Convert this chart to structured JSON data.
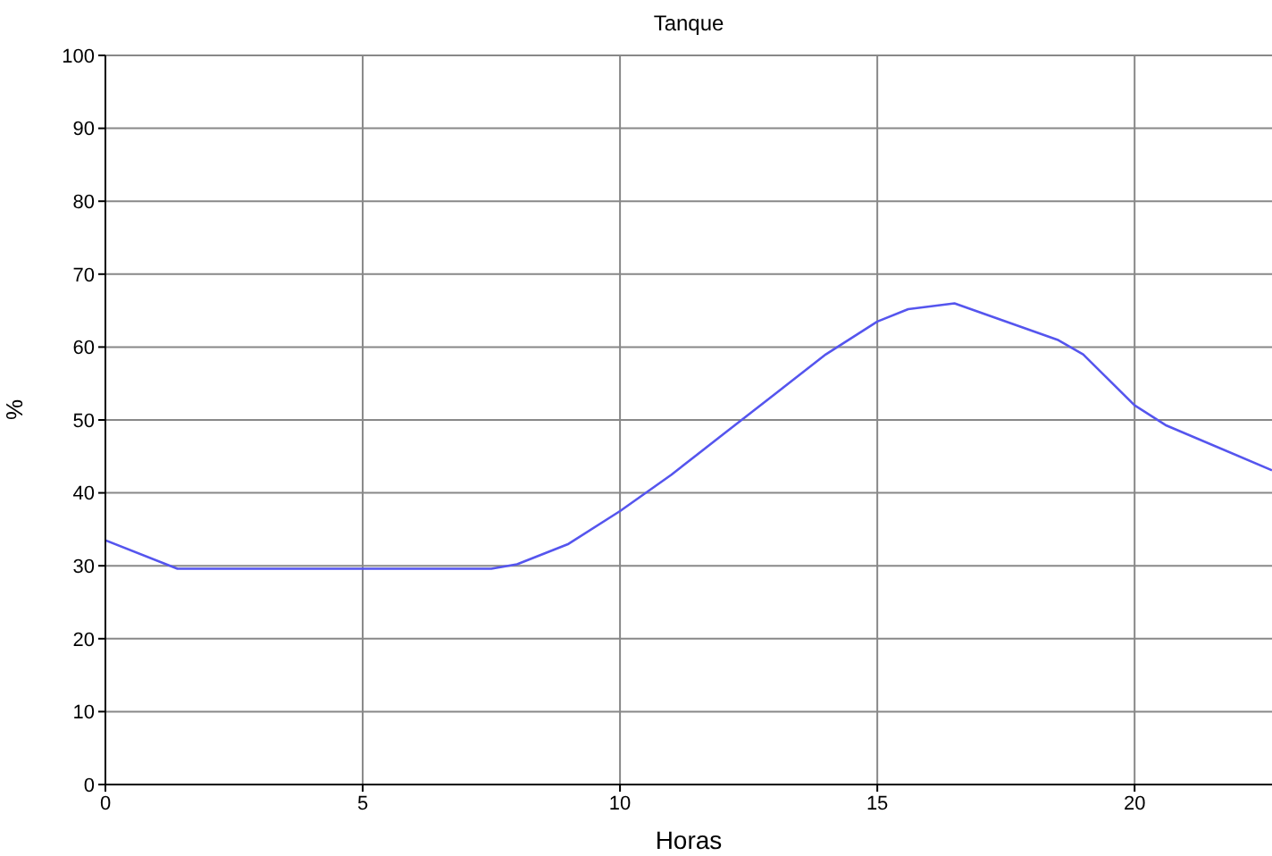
{
  "chart_data": {
    "type": "line",
    "title": "Tanque",
    "xlabel": "Horas",
    "ylabel": "%",
    "x": [
      0,
      1.4,
      7.5,
      8,
      9,
      10,
      11,
      12,
      13,
      14,
      15,
      15.6,
      16.5,
      18.5,
      19,
      20,
      20.6,
      22.67
    ],
    "series": [
      {
        "color": "#5555ee",
        "values": [
          33.5,
          29.6,
          29.6,
          30.2,
          33,
          37.5,
          42.5,
          48,
          53.5,
          59,
          63.5,
          65.2,
          66,
          61,
          59,
          52,
          49.3,
          43.1
        ]
      }
    ],
    "xlim": [
      0,
      22.67
    ],
    "xticks": [
      0,
      5,
      10,
      15,
      20
    ],
    "ylim": [
      0,
      100
    ],
    "yticks": [
      0,
      10,
      20,
      30,
      40,
      50,
      60,
      70,
      80,
      90,
      100
    ],
    "grid": true,
    "legend": false,
    "marker": "none",
    "line_style": "solid"
  }
}
